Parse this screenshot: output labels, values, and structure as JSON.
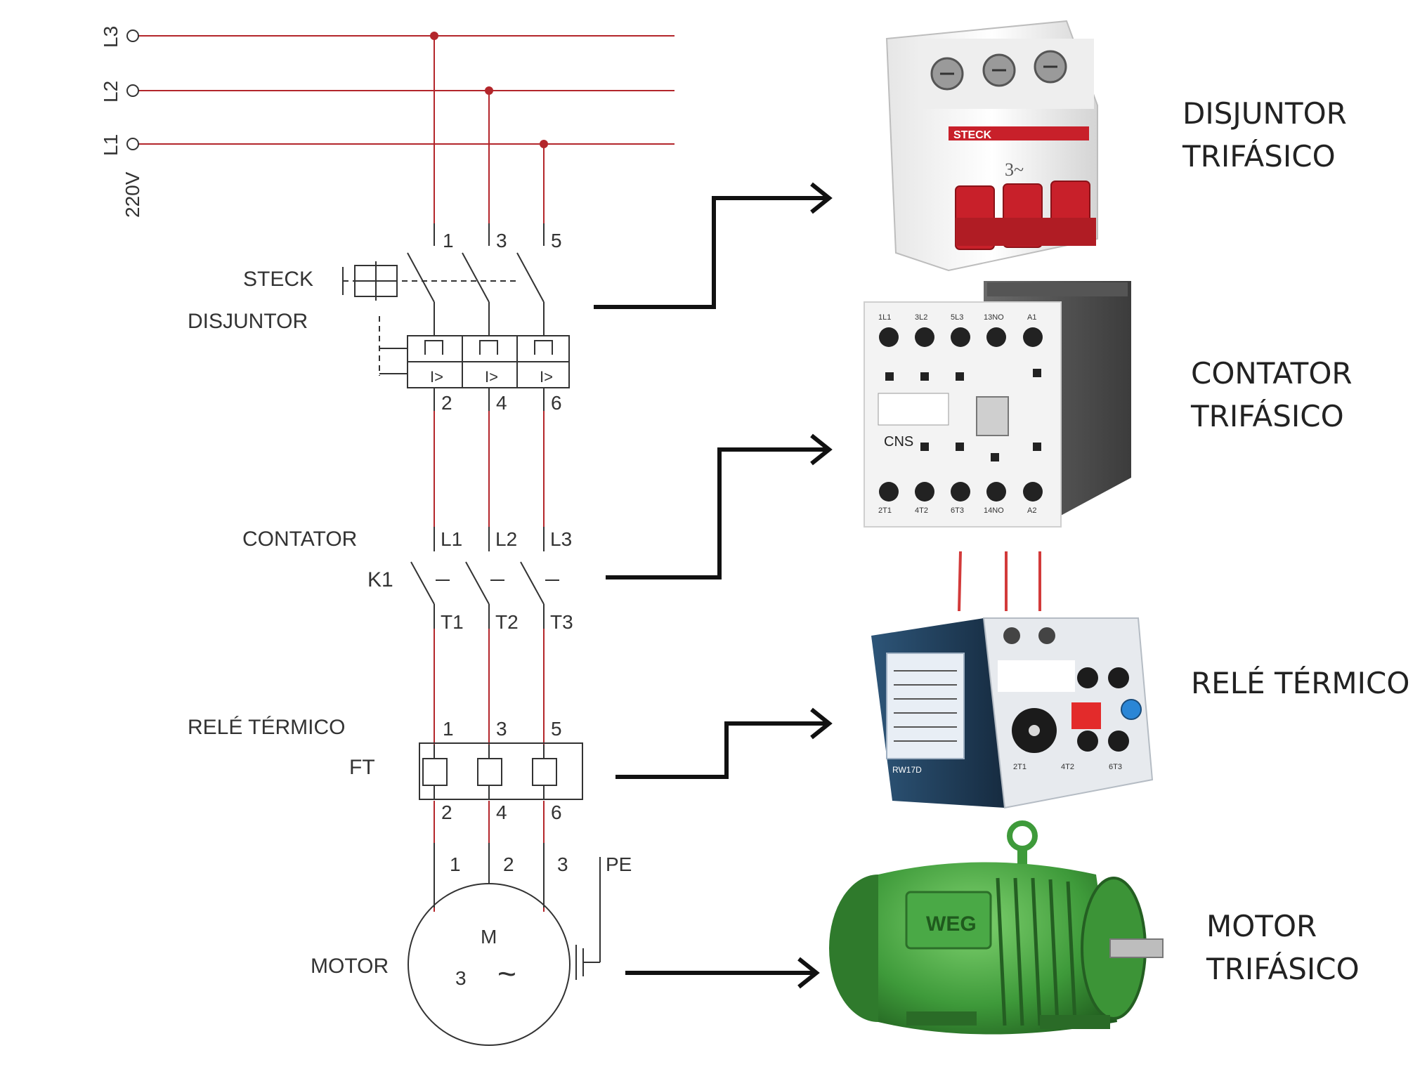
{
  "supply": {
    "l3": "L3",
    "l2": "L2",
    "l1": "L1",
    "voltage": "220V"
  },
  "breaker": {
    "brand": "STECK",
    "name": "DISJUNTOR",
    "top_terminals": [
      "1",
      "3",
      "5"
    ],
    "bottom_terminals": [
      "2",
      "4",
      "6"
    ],
    "device_brand": "STECK",
    "device_rating": "3~"
  },
  "contactor": {
    "name": "CONTATOR",
    "tag": "K1",
    "line_terminals": [
      "L1",
      "L2",
      "L3"
    ],
    "load_terminals": [
      "T1",
      "T2",
      "T3"
    ],
    "device_terminals_top": [
      "1L1",
      "3L2",
      "5L3",
      "13NO",
      "A1"
    ],
    "device_terminals_bottom": [
      "2T1",
      "4T2",
      "6T3",
      "14NO",
      "A2"
    ],
    "device_brand": "CNS"
  },
  "relay": {
    "name": "RELÉ TÉRMICO",
    "tag": "FT",
    "top_terminals": [
      "1",
      "3",
      "5"
    ],
    "bottom_terminals": [
      "2",
      "4",
      "6"
    ],
    "device_bottom": [
      "2T1",
      "4T2",
      "6T3"
    ],
    "device_model": "RW17D"
  },
  "motor": {
    "name": "MOTOR",
    "terminals": [
      "1",
      "2",
      "3"
    ],
    "earth": "PE",
    "symbol_m": "M",
    "symbol_phase": "3",
    "symbol_ac": "~",
    "device_brand": "WEG"
  },
  "captions": {
    "breaker": [
      "DISJUNTOR",
      "TRIFÁSICO"
    ],
    "contactor": [
      "CONTATOR",
      "TRIFÁSICO"
    ],
    "relay": [
      "RELÉ TÉRMICO"
    ],
    "motor": [
      "MOTOR",
      "TRIFÁSICO"
    ]
  },
  "colors": {
    "wire": "#b3262b",
    "symbol": "#333333",
    "breaker_handle": "#c8202a",
    "relay_body": "#1f3d5a",
    "motor_body": "#3e9a3a"
  }
}
